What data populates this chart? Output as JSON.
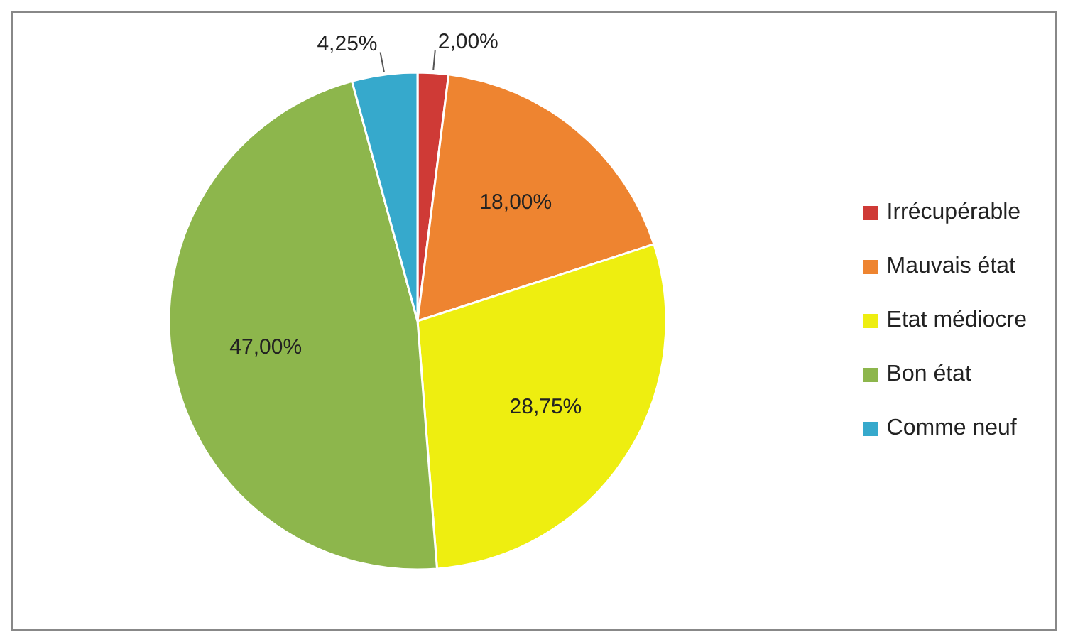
{
  "chart_data": {
    "type": "pie",
    "categories": [
      "Irrécupérable",
      "Mauvais état",
      "Etat médiocre",
      "Bon état",
      "Comme neuf"
    ],
    "values": [
      2,
      18,
      28.75,
      47,
      4.25
    ],
    "value_labels": [
      "2,00%",
      "18,00%",
      "28,75%",
      "47,00%",
      "4,25%"
    ],
    "colors": [
      "#cf3a36",
      "#ee8430",
      "#eeee10",
      "#8db64c",
      "#36a9cc"
    ],
    "legend": "right"
  }
}
